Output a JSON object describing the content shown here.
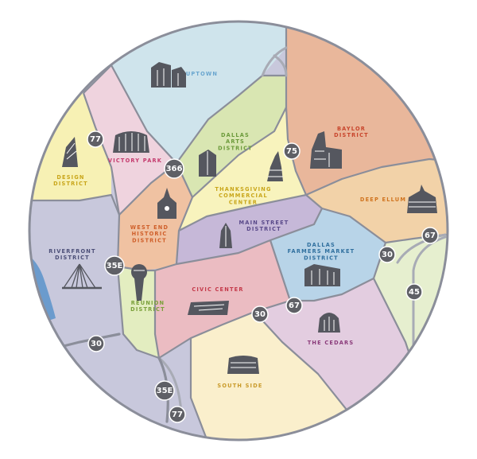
{
  "districts": {
    "uptown": {
      "lines": [
        "UPTOWN"
      ],
      "color": "#6aa6cf"
    },
    "victory_park": {
      "lines": [
        "VICTORY PARK"
      ],
      "color": "#c43a6d"
    },
    "design_district": {
      "lines": [
        "DESIGN",
        "DISTRICT"
      ],
      "color": "#c9a61a"
    },
    "dallas_arts_district": {
      "lines": [
        "DALLAS",
        "ARTS",
        "DISTRICT"
      ],
      "color": "#6b9a3a"
    },
    "baylor_district": {
      "lines": [
        "BAYLOR",
        "DISTRICT"
      ],
      "color": "#c8452c"
    },
    "thanksgiving_commercial_center": {
      "lines": [
        "THANKSGIVING",
        "COMMERCIAL",
        "CENTER"
      ],
      "color": "#c9a61a"
    },
    "deep_ellum": {
      "lines": [
        "DEEP ELLUM"
      ],
      "color": "#d0731e"
    },
    "west_end_historic_district": {
      "lines": [
        "WEST END",
        "HISTORIC",
        "DISTRICT"
      ],
      "color": "#cf5f2a"
    },
    "main_street_district": {
      "lines": [
        "MAIN STREET",
        "DISTRICT"
      ],
      "color": "#5a4a8a"
    },
    "riverfront_district": {
      "lines": [
        "RIVERFRONT",
        "DISTRICT"
      ],
      "color": "#4c4f78"
    },
    "dallas_farmers_market_district": {
      "lines": [
        "DALLAS",
        "FARMERS MARKET",
        "DISTRICT"
      ],
      "color": "#2f6f9e"
    },
    "civic_center": {
      "lines": [
        "CIVIC CENTER"
      ],
      "color": "#c43a4a"
    },
    "reunion_district": {
      "lines": [
        "REUNION",
        "DISTRICT"
      ],
      "color": "#7aa03a"
    },
    "the_cedars": {
      "lines": [
        "THE CEDARS"
      ],
      "color": "#8a3a7a"
    },
    "south_side": {
      "lines": [
        "SOUTH SIDE"
      ],
      "color": "#c99a2a"
    }
  },
  "highway_shields": [
    {
      "number": "77"
    },
    {
      "number": "366"
    },
    {
      "number": "75"
    },
    {
      "number": "35E"
    },
    {
      "number": "30"
    },
    {
      "number": "35E"
    },
    {
      "number": "77"
    },
    {
      "number": "67"
    },
    {
      "number": "30"
    },
    {
      "number": "67"
    },
    {
      "number": "30"
    },
    {
      "number": "45"
    }
  ],
  "colors": {
    "uptown_fill": "#cfe4ec",
    "victory_park_fill": "#efd3de",
    "design_fill": "#f7f1b4",
    "arts_fill": "#d9e6b2",
    "baylor_fill": "#e9b79b",
    "thanksgiving_fill": "#f8f3bd",
    "deep_ellum_fill": "#f2d2a8",
    "west_end_fill": "#f0c2a2",
    "main_street_fill": "#c6b8d8",
    "riverfront_fill": "#c8c8dc",
    "farmers_fill": "#b8d4e8",
    "civic_fill": "#ebbcc2",
    "reunion_fill": "#e3edc0",
    "cedars_fill": "#e3cde0",
    "south_side_fill": "#faefcc",
    "east_fill": "#e6efcf",
    "river": "#6b9bcd",
    "border": "#8b8e9a",
    "shield": "#5f6066"
  }
}
